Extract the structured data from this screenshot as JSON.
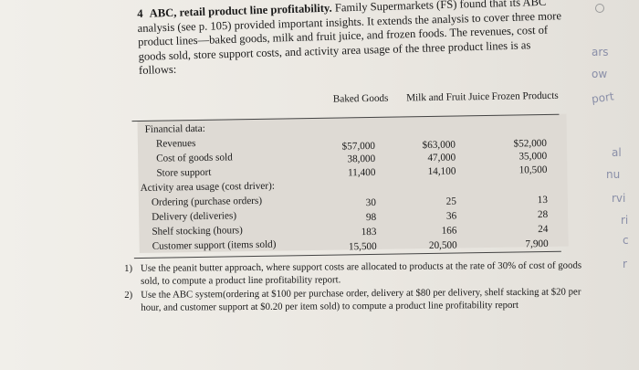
{
  "problem": {
    "number": "4",
    "lead": "ABC, retail product line profitability.",
    "body": "Family Supermarkets (FS) found that its ABC analysis (see p. 105) provided important insights. It extends the analysis to cover three more product lines—baked goods, milk and fruit juice, and frozen foods. The revenues, cost of goods sold, store support costs, and activity area usage of the three product lines is as follows:"
  },
  "table": {
    "columns": [
      "Baked Goods",
      "Milk and Fruit Juice",
      "Frozen Products"
    ],
    "sections": [
      {
        "heading": "Financial data:",
        "rows": [
          {
            "label": "Revenues",
            "values": [
              "$57,000",
              "$63,000",
              "$52,000"
            ]
          },
          {
            "label": "Cost of goods sold",
            "values": [
              "38,000",
              "47,000",
              "35,000"
            ]
          },
          {
            "label": "Store support",
            "values": [
              "11,400",
              "14,100",
              "10,500"
            ]
          }
        ]
      },
      {
        "heading": "Activity area usage (cost driver):",
        "rows": [
          {
            "label": "Ordering (purchase orders)",
            "values": [
              "30",
              "25",
              "13"
            ]
          },
          {
            "label": "Delivery (deliveries)",
            "values": [
              "98",
              "36",
              "28"
            ]
          },
          {
            "label": "Shelf stocking (hours)",
            "values": [
              "183",
              "166",
              "24"
            ]
          },
          {
            "label": "Customer support (items sold)",
            "values": [
              "15,500",
              "20,500",
              "7,900"
            ]
          }
        ]
      }
    ]
  },
  "questions": [
    {
      "num": "1)",
      "text": "Use the peanit butter approach, where support costs are allocated to products at the rate of 30% of cost of goods sold, to compute a product line profitability report."
    },
    {
      "num": "2)",
      "text": "Use the ABC system(ordering at $100 per purchase order, delivery at $80 per delivery, shelf stacking at $20 per hour, and customer support at $0.20 per item sold) to compute a product line profitability report"
    }
  ],
  "margin_notes": [
    "ars",
    "ow",
    "port",
    "al",
    "nu",
    "rvi",
    "ri",
    "c",
    "r"
  ]
}
